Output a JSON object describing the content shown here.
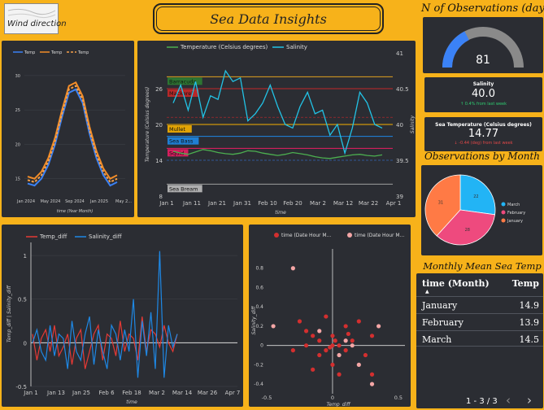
{
  "header": {
    "logo_text": "Wind direction",
    "title": "Sea Data Insights"
  },
  "gauge": {
    "title": "N of Observations (days)",
    "value": "81",
    "fraction": 0.35,
    "track_color": "#8a8a8a",
    "fill_color": "#3b82f6"
  },
  "kpis": {
    "salinity": {
      "label": "Salinity",
      "value": "40.0",
      "delta": "↑ 0.4% from last week"
    },
    "sea_temp": {
      "label": "Sea Temperature (Celsius degrees)",
      "value": "14.77",
      "delta": "↓ -0.44 (deg) from last week"
    }
  },
  "pie": {
    "title": "Observations by Month",
    "chart_data": {
      "type": "pie",
      "categories": [
        "March",
        "February",
        "January"
      ],
      "values": [
        22,
        28,
        31
      ],
      "colors": [
        "#22b4f5",
        "#ee4a7e",
        "#ff7a45"
      ]
    }
  },
  "monthly_table": {
    "title": "Monthly Mean Sea Temp",
    "headers": [
      "time (Month)",
      "Temp"
    ],
    "sort_indicator": "▲",
    "rows": [
      {
        "month": "January",
        "temp": "14.9"
      },
      {
        "month": "February",
        "temp": "13.9"
      },
      {
        "month": "March",
        "temp": "14.5"
      }
    ],
    "pagination": "1 - 3 / 3"
  },
  "year_chart": {
    "chart_data": {
      "type": "line",
      "series": [
        {
          "name": "Temp",
          "color": "#3b82f6",
          "dash": "",
          "values": [
            14.3,
            14.0,
            15.0,
            17.0,
            20.0,
            24.0,
            27.5,
            28.0,
            26.0,
            21.5,
            18.0,
            15.5,
            14.0,
            14.5
          ]
        },
        {
          "name": "Temp",
          "color": "#f28c28",
          "dash": "",
          "values": [
            15.3,
            15.0,
            16.0,
            18.0,
            21.0,
            25.0,
            28.5,
            29.0,
            27.0,
            22.5,
            19.0,
            16.5,
            15.0,
            15.5
          ]
        },
        {
          "name": "Temp",
          "color": "#f5a04a",
          "dash": "3,2",
          "values": [
            14.8,
            14.5,
            15.5,
            17.5,
            20.5,
            24.5,
            28.0,
            28.5,
            26.5,
            22.0,
            18.5,
            16.0,
            14.5,
            15.0
          ]
        }
      ],
      "x_ticks": [
        "Jan 2024",
        "May 2024",
        "Sep 2024",
        "Jan 2025",
        "May 2..."
      ],
      "xlabel": "time (Year Month)",
      "y_ticks": [
        "30",
        "25",
        "20",
        "15"
      ],
      "ylim": [
        12,
        32
      ]
    }
  },
  "main_chart": {
    "chart_data": {
      "type": "line",
      "legend": [
        "Temperature (Celsius degrees)",
        "Salinity"
      ],
      "temperature": [
        15.5,
        15.2,
        15.0,
        15.4,
        15.8,
        15.6,
        15.3,
        15.1,
        15.0,
        15.2,
        15.6,
        15.5,
        15.2,
        15.0,
        14.8,
        15.0,
        15.3,
        15.1,
        14.9,
        14.6,
        14.4,
        14.3,
        14.5,
        14.7,
        14.9,
        15.0,
        14.8,
        14.7,
        14.9
      ],
      "salinity": [
        40.3,
        40.55,
        40.2,
        40.6,
        40.1,
        40.4,
        40.35,
        40.75,
        40.6,
        40.65,
        40.05,
        40.15,
        40.3,
        40.55,
        40.25,
        40.0,
        39.95,
        40.25,
        40.45,
        40.15,
        40.2,
        39.85,
        40.0,
        39.6,
        39.95,
        40.45,
        40.3,
        40.0,
        39.95
      ],
      "thresholds": [
        {
          "label": "Barracuda",
          "value": 28,
          "color": "#e0a020",
          "bg": "#2e7d32"
        },
        {
          "label": "Mackerel",
          "value": 26,
          "color": "#c62828",
          "bg": "#c62828"
        },
        {
          "label": "Mullet",
          "value": 20,
          "color": "#f5b000",
          "bg": "#f5b000"
        },
        {
          "label": "Sea Bass",
          "value": 18,
          "color": "#1e88e5",
          "bg": "#1e88e5"
        },
        {
          "label": "Squid",
          "value": 16,
          "color": "#e91e63",
          "bg": "#e91e63"
        },
        {
          "label": "Sea Bream",
          "value": 10,
          "color": "#9e9e9e",
          "bg": "#bdbdbd"
        }
      ],
      "x_ticks": [
        "Jan 1",
        "Jan 11",
        "Jan 21",
        "Jan 31",
        "Feb 10",
        "Feb 20",
        "Mar 2",
        "Mar 12",
        "Mar 22",
        "Apr 1"
      ],
      "xlabel": "time",
      "ylabel": "Temperature (Celsius degrees)",
      "y2label": "Salinity",
      "y_ticks": [
        "26",
        "20",
        "14",
        "8"
      ],
      "y2_ticks": [
        "41",
        "40.5",
        "40",
        "39.5",
        "39"
      ],
      "ylim": [
        8,
        32
      ],
      "y2lim": [
        39,
        41
      ]
    }
  },
  "diff_chart": {
    "chart_data": {
      "type": "line",
      "legend": [
        "Temp_diff",
        "Salinity_diff"
      ],
      "temp_diff": [
        0.1,
        -0.2,
        0.05,
        0.15,
        -0.1,
        0.2,
        -0.15,
        -0.05,
        0.1,
        -0.25,
        0.05,
        0.15,
        -0.3,
        -0.1,
        0.1,
        0.2,
        -0.2,
        0.1,
        0.05,
        -0.15,
        0.25,
        -0.1,
        0.1,
        0.05,
        -0.2,
        0.3,
        -0.1,
        0.15,
        0.1,
        -0.05,
        0.2,
        0.0,
        -0.1,
        0.1
      ],
      "salinity_diff": [
        0.0,
        0.15,
        -0.1,
        -0.2,
        0.2,
        -0.15,
        0.1,
        0.05,
        -0.3,
        0.25,
        -0.1,
        -0.2,
        0.1,
        0.3,
        -0.25,
        0.15,
        -0.1,
        -0.3,
        0.2,
        0.1,
        -0.2,
        0.15,
        -0.1,
        0.5,
        -0.4,
        0.25,
        -0.15,
        0.35,
        -0.3,
        1.05,
        -0.4,
        0.2,
        -0.05,
        0.1
      ],
      "x_ticks": [
        "Jan 1",
        "Jan 13",
        "Jan 25",
        "Feb 6",
        "Feb 18",
        "Mar 2",
        "Mar 14",
        "Mar 26",
        "Apr 7"
      ],
      "xlabel": "time",
      "ylabel": "Temp_diff | Salinity_diff",
      "y_ticks": [
        "1",
        "0.5",
        "0",
        "-0.5"
      ],
      "ylim": [
        -0.5,
        1.15
      ]
    }
  },
  "scatter_chart": {
    "chart_data": {
      "type": "scatter",
      "legend": [
        "time (Date Hour M...",
        "time (Date Hour M..."
      ],
      "xlabel": "Temp_diff",
      "ylabel": "Salinity_diff",
      "x_ticks": [
        "-0.5",
        "0",
        "0.5"
      ],
      "y_ticks": [
        "0.8",
        "0.6",
        "0.4",
        "0.2",
        "0",
        "-0.2",
        "-0.4"
      ],
      "xlim": [
        -0.5,
        0.55
      ],
      "ylim": [
        -0.5,
        1.0
      ],
      "points_dark": [
        [
          -0.2,
          0.0
        ],
        [
          -0.15,
          0.1
        ],
        [
          -0.1,
          0.05
        ],
        [
          -0.05,
          -0.05
        ],
        [
          0.0,
          0.1
        ],
        [
          0.05,
          0.0
        ],
        [
          0.1,
          -0.05
        ],
        [
          0.15,
          0.05
        ],
        [
          -0.1,
          -0.1
        ],
        [
          0.0,
          -0.2
        ],
        [
          0.2,
          0.25
        ],
        [
          -0.3,
          -0.05
        ],
        [
          0.1,
          0.2
        ],
        [
          -0.05,
          0.3
        ],
        [
          0.05,
          -0.3
        ],
        [
          -0.2,
          0.15
        ],
        [
          0.25,
          -0.1
        ],
        [
          0.3,
          0.1
        ],
        [
          -0.15,
          -0.25
        ],
        [
          0.0,
          0.0
        ],
        [
          0.02,
          0.05
        ],
        [
          -0.02,
          -0.02
        ],
        [
          0.12,
          0.12
        ],
        [
          -0.25,
          0.25
        ],
        [
          0.3,
          -0.3
        ]
      ],
      "points_light": [
        [
          -0.3,
          0.8
        ],
        [
          0.35,
          0.2
        ],
        [
          0.3,
          -0.4
        ],
        [
          -0.45,
          0.2
        ],
        [
          0.1,
          0.05
        ],
        [
          0.2,
          -0.2
        ],
        [
          -0.1,
          0.15
        ],
        [
          0.05,
          -0.1
        ],
        [
          0.15,
          0.0
        ]
      ]
    }
  }
}
